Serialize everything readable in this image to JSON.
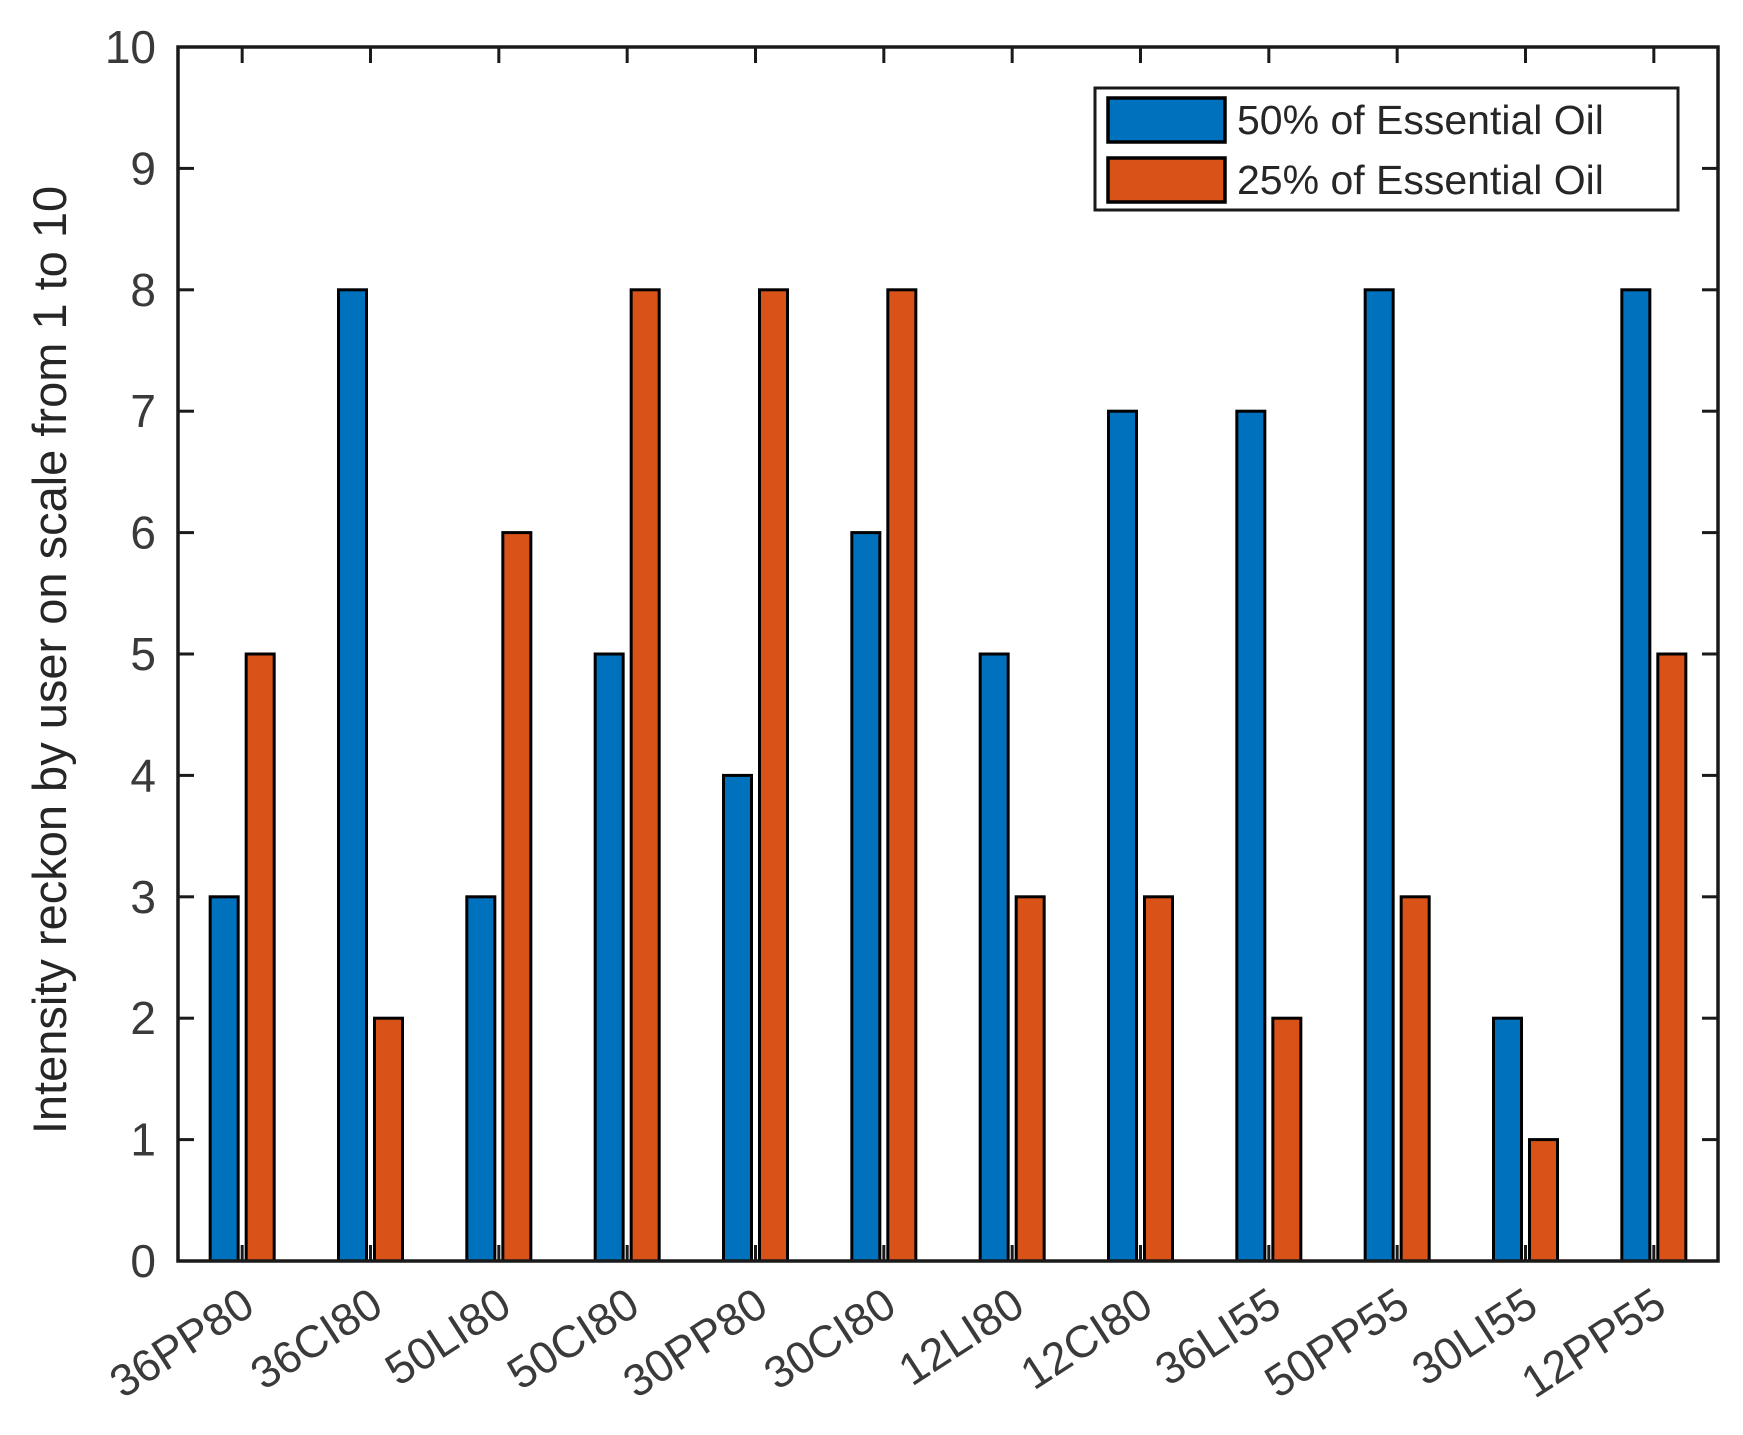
{
  "chart_data": {
    "type": "bar",
    "title": "",
    "xlabel": "",
    "ylabel": "Intensity reckon by user on scale from 1 to 10",
    "categories": [
      "36PP80",
      "36CI80",
      "50LI80",
      "50CI80",
      "30PP80",
      "30CI80",
      "12LI80",
      "12CI80",
      "36LI55",
      "50PP55",
      "30LI55",
      "12PP55"
    ],
    "series": [
      {
        "name": "50% of Essential Oil",
        "color": "#0072BD",
        "values": [
          3,
          8,
          3,
          5,
          4,
          6,
          5,
          7,
          7,
          8,
          2,
          8
        ]
      },
      {
        "name": "25% of Essential Oil",
        "color": "#D95319",
        "values": [
          5,
          2,
          6,
          8,
          8,
          8,
          3,
          3,
          2,
          3,
          1,
          5
        ]
      }
    ],
    "ylim": [
      0,
      10
    ],
    "yticks": [
      0,
      1,
      2,
      3,
      4,
      5,
      6,
      7,
      8,
      9,
      10
    ],
    "grid": false,
    "legend_position": "top-right",
    "bar_edge_color": "#000000",
    "axis_color": "#1a1a1a",
    "tick_label_color": "#3a3a3a",
    "label_color": "#262626",
    "x_tick_rotation_deg": -33
  }
}
